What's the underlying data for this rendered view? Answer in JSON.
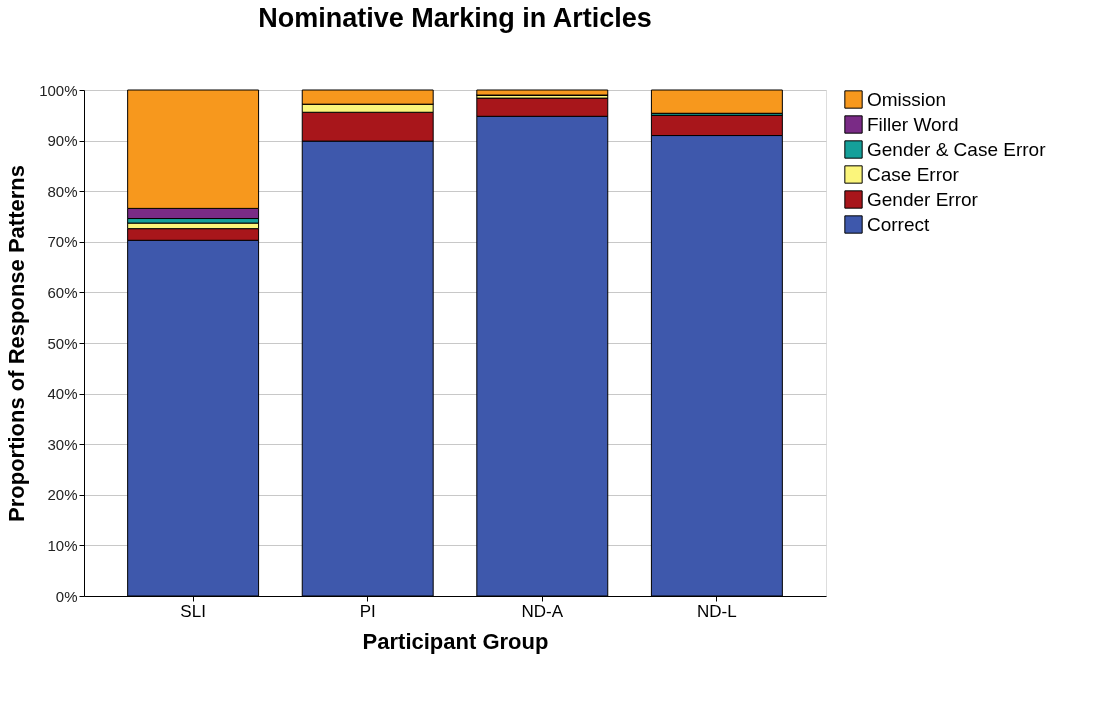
{
  "chart_data": {
    "type": "bar",
    "title": "Nominative Marking in Articles",
    "xlabel": "Participant Group",
    "ylabel": "Proportions of Response Patterns",
    "categories": [
      "SLI",
      "PI",
      "ND-A",
      "ND-L"
    ],
    "stacked": true,
    "series": [
      {
        "name": "Correct",
        "color": "#3e58ac",
        "values": [
          70.3,
          89.9,
          94.8,
          91.0
        ]
      },
      {
        "name": "Gender Error",
        "color": "#a8161b",
        "values": [
          2.3,
          5.7,
          3.6,
          4.0
        ]
      },
      {
        "name": "Case Error",
        "color": "#fbf57b",
        "values": [
          1.1,
          1.6,
          0.6,
          0
        ]
      },
      {
        "name": "Gender & Case Error",
        "color": "#15a09a",
        "values": [
          0.9,
          0,
          0,
          0.4
        ]
      },
      {
        "name": "Filler Word",
        "color": "#7a2b86",
        "values": [
          2.0,
          0,
          0,
          0
        ]
      },
      {
        "name": "Omission",
        "color": "#f7981d",
        "values": [
          23.4,
          2.8,
          1.0,
          4.6
        ]
      }
    ],
    "ylim": [
      0,
      100
    ],
    "yticks": [
      {
        "value": 0,
        "label": "0%"
      },
      {
        "value": 10,
        "label": "10%"
      },
      {
        "value": 20,
        "label": "20%"
      },
      {
        "value": 30,
        "label": "30%"
      },
      {
        "value": 40,
        "label": "40%"
      },
      {
        "value": 50,
        "label": "50%"
      },
      {
        "value": 60,
        "label": "60%"
      },
      {
        "value": 70,
        "label": "70%"
      },
      {
        "value": 80,
        "label": "80%"
      },
      {
        "value": 90,
        "label": "90%"
      },
      {
        "value": 100,
        "label": "100%"
      }
    ],
    "grid": "y",
    "legend": "top right"
  }
}
